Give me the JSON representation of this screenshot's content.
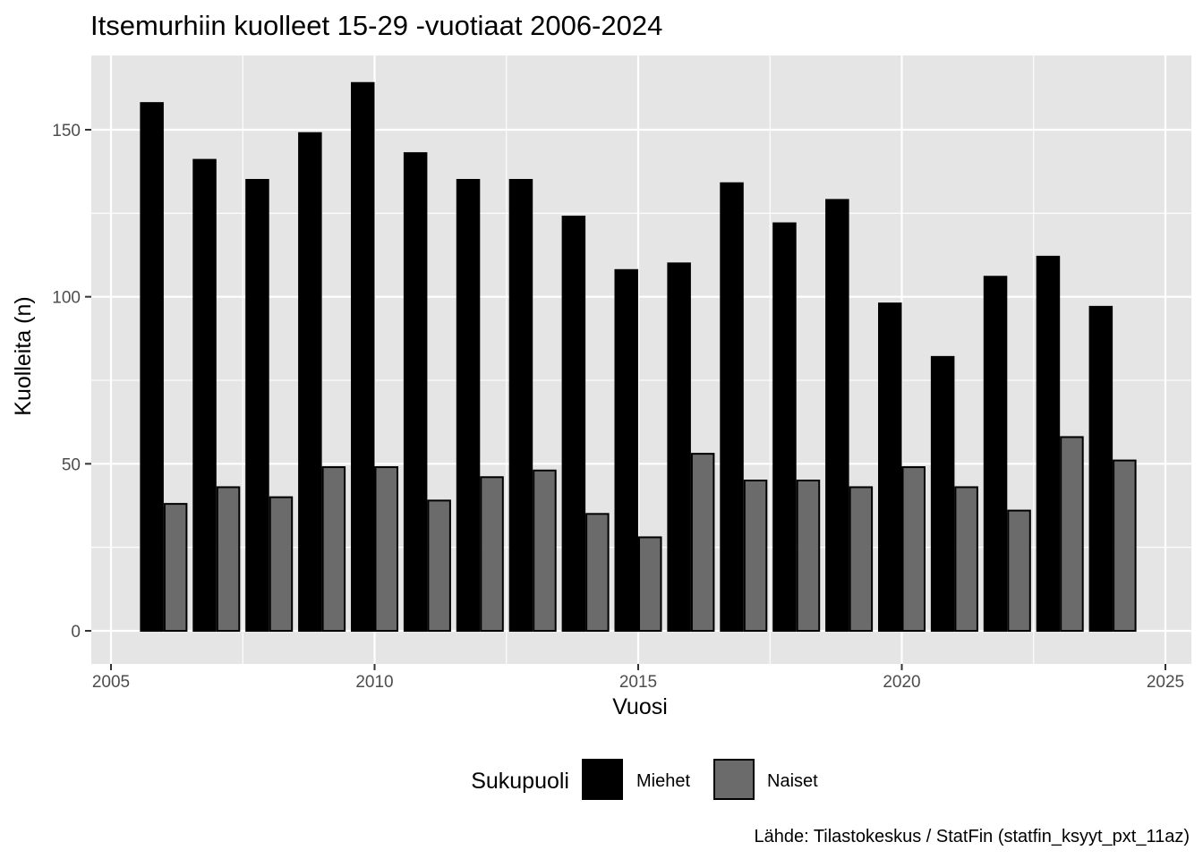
{
  "chart_data": {
    "type": "bar",
    "title": "Itsemurhiin kuolleet 15-29 -vuotiaat 2006-2024",
    "xlabel": "Vuosi",
    "ylabel": "Kuolleita (n)",
    "x": [
      2006,
      2007,
      2008,
      2009,
      2010,
      2011,
      2012,
      2013,
      2014,
      2015,
      2016,
      2017,
      2018,
      2019,
      2020,
      2021,
      2022,
      2023,
      2024
    ],
    "series": [
      {
        "name": "Miehet",
        "color": "#000000",
        "values": [
          158,
          141,
          135,
          149,
          164,
          143,
          135,
          135,
          124,
          108,
          110,
          134,
          122,
          129,
          98,
          82,
          106,
          112,
          97
        ]
      },
      {
        "name": "Naiset",
        "color": "#6b6b6b",
        "values": [
          38,
          43,
          40,
          49,
          49,
          39,
          46,
          48,
          35,
          28,
          53,
          45,
          45,
          43,
          49,
          43,
          36,
          58,
          51
        ]
      }
    ],
    "xlim": [
      2005,
      2025
    ],
    "ylim": [
      0,
      150
    ],
    "xticks": [
      2005,
      2010,
      2015,
      2020,
      2025
    ],
    "yticks": [
      0,
      50,
      100,
      150
    ],
    "grid": true,
    "legend_title": "Sukupuoli",
    "legend_position": "bottom",
    "caption": "Lähde: Tilastokeskus / StatFin (statfin_ksyyt_pxt_11az)",
    "panel_background": "#e5e5e5",
    "grid_color": "#ffffff"
  }
}
